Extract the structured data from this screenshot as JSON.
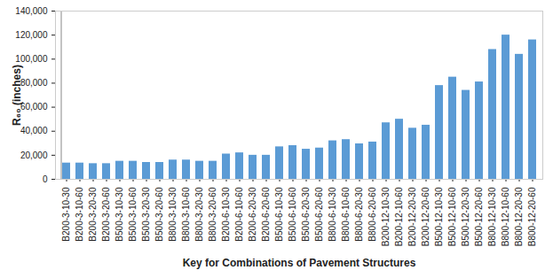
{
  "chart_data": {
    "type": "bar",
    "categories": [
      "B200-3-10-30",
      "B200-3-10-60",
      "B200-3-20-30",
      "B200-3-20-60",
      "B500-3-10-30",
      "B500-3-10-60",
      "B500-3-20-30",
      "B500-3-20-60",
      "B800-3-10-30",
      "B800-3-10-60",
      "B800-3-20-30",
      "B800-3-20-60",
      "B200-6-10-30",
      "B200-6-10-60",
      "B200-6-20-30",
      "B200-6-20-60",
      "B500-6-10-30",
      "B500-6-10-60",
      "B500-6-20-30",
      "B500-6-20-60",
      "B800-6-10-30",
      "B800-6-10-60",
      "B800-6-20-30",
      "B800-6-20-60",
      "B200-12-10-30",
      "B200-12-10-60",
      "B200-12-20-30",
      "B200-12-20-60",
      "B500-12-10-30",
      "B500-12-10-60",
      "B500-12-20-30",
      "B500-12-20-60",
      "B800-12-10-30",
      "B800-12-10-60",
      "B800-12-20-30",
      "B800-12-20-60"
    ],
    "values": [
      13500,
      13500,
      13000,
      13000,
      15000,
      15000,
      14000,
      14000,
      16000,
      16000,
      15000,
      15000,
      21000,
      22000,
      20000,
      20000,
      27000,
      28000,
      25000,
      26000,
      32000,
      33000,
      29500,
      31000,
      47000,
      50000,
      42500,
      45000,
      78000,
      85000,
      74000,
      81000,
      108000,
      120000,
      104000,
      116000
    ],
    "color": "#5b9bd5",
    "x_label": "Key for Combinations of Pavement Structures",
    "y_label": "R₆₀ (inches)",
    "ylim": [
      0,
      140000
    ],
    "yticks": [
      0,
      20000,
      40000,
      60000,
      80000,
      100000,
      120000,
      140000
    ],
    "grid": false
  }
}
